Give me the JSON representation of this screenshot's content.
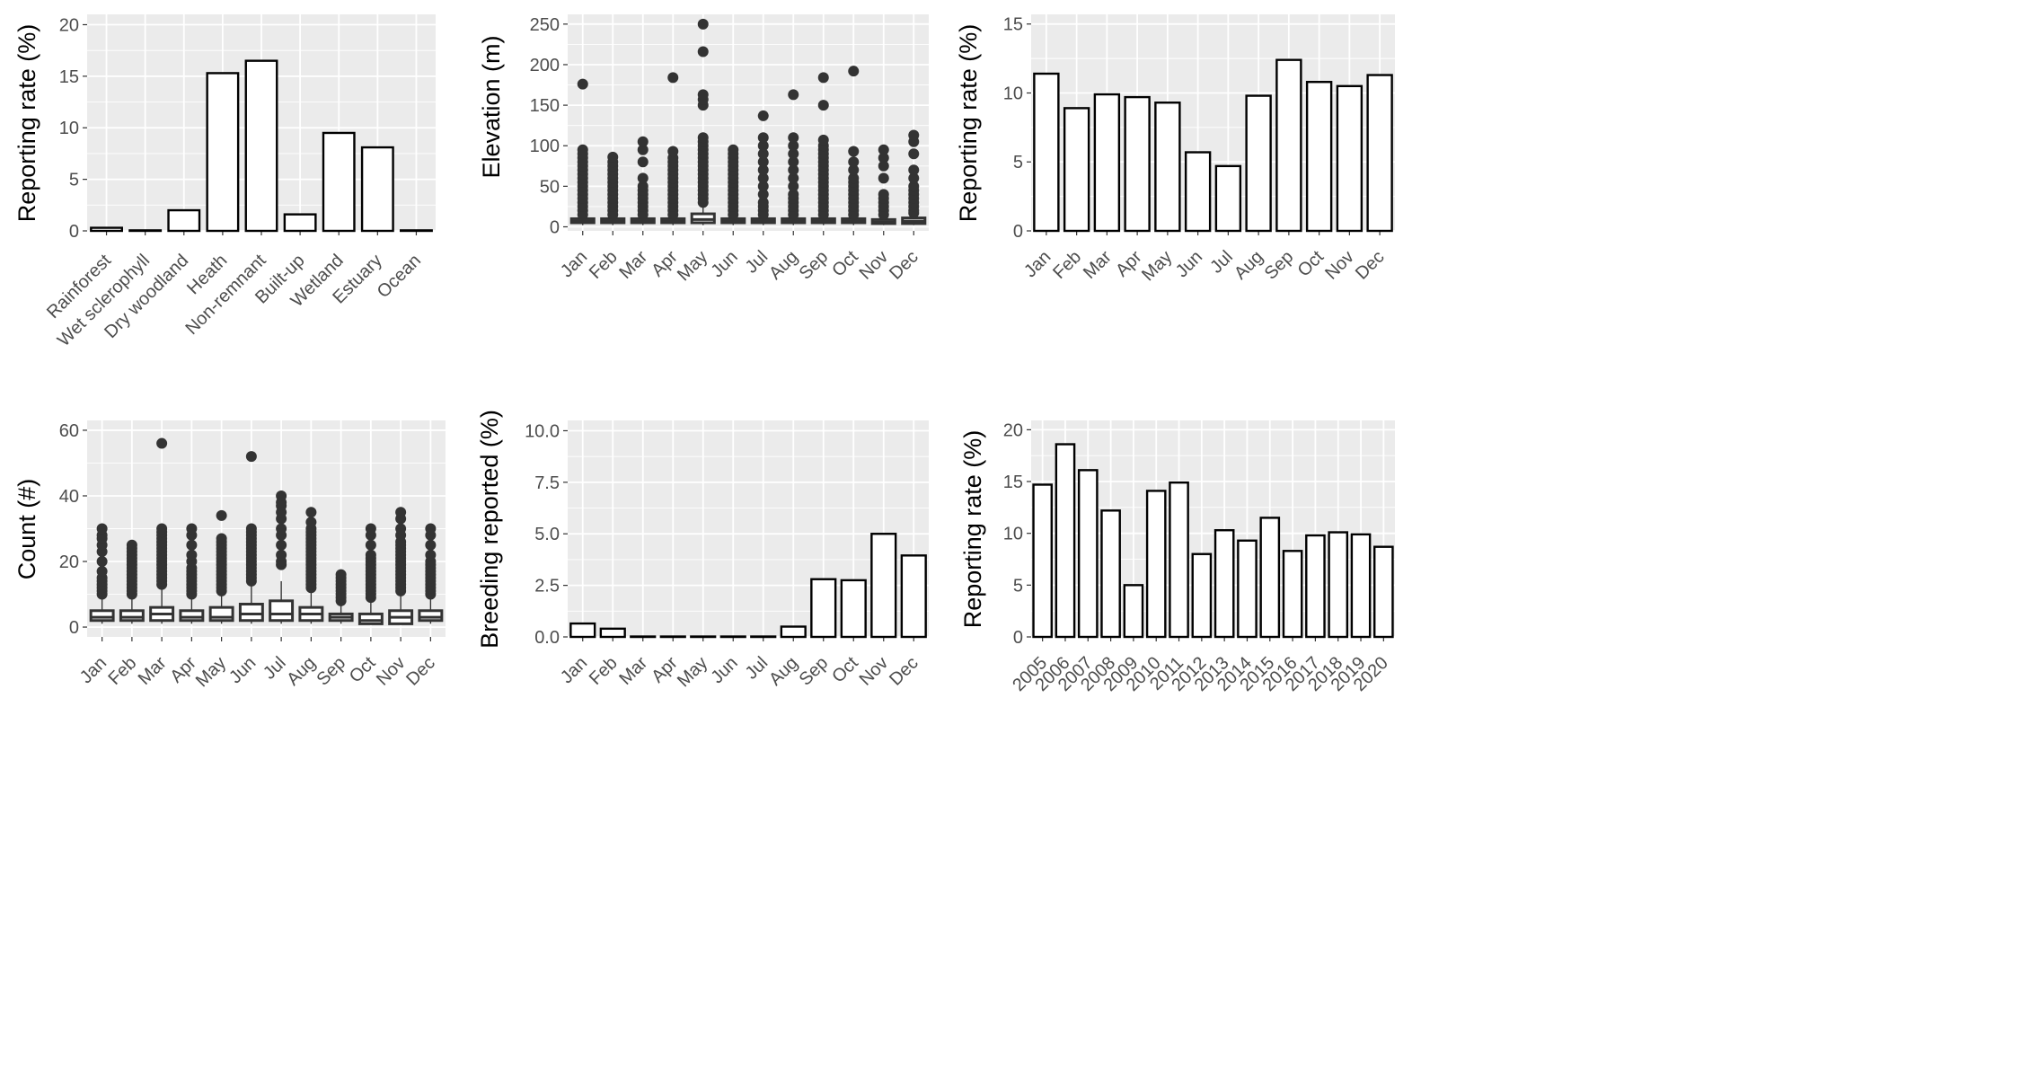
{
  "chart_data": [
    {
      "type": "bar",
      "ylabel": "Reporting rate (%)",
      "xlabel": "",
      "categories": [
        "Rainforest",
        "Wet sclerophyll",
        "Dry woodland",
        "Heath",
        "Non-remnant",
        "Built-up",
        "Wetland",
        "Estuary",
        "Ocean"
      ],
      "values": [
        0.3,
        0.05,
        2.0,
        15.3,
        16.5,
        1.6,
        9.5,
        8.1,
        0.05
      ],
      "ylim": [
        0,
        21
      ],
      "yticks": [
        "0",
        "5",
        "10",
        "15",
        "20"
      ],
      "grid": true,
      "colors": {
        "panel": "#ebebeb",
        "grid": "#ffffff",
        "bar_fill": "#ffffff",
        "bar_stroke": "#000000"
      }
    },
    {
      "type": "boxplot",
      "ylabel": "Elevation (m)",
      "xlabel": "",
      "categories": [
        "Jan",
        "Feb",
        "Mar",
        "Apr",
        "May",
        "Jun",
        "Jul",
        "Aug",
        "Sep",
        "Oct",
        "Nov",
        "Dec"
      ],
      "boxes": [
        {
          "q1": 5,
          "median": 7,
          "q3": 10,
          "whisker_low": 2,
          "whisker_high": 12,
          "outliers": [
            15,
            20,
            25,
            30,
            35,
            40,
            45,
            50,
            55,
            60,
            65,
            70,
            75,
            80,
            85,
            90,
            95,
            176
          ]
        },
        {
          "q1": 5,
          "median": 7,
          "q3": 10,
          "whisker_low": 2,
          "whisker_high": 12,
          "outliers": [
            15,
            20,
            25,
            30,
            35,
            40,
            45,
            50,
            55,
            60,
            65,
            70,
            75,
            80,
            86
          ]
        },
        {
          "q1": 5,
          "median": 7,
          "q3": 10,
          "whisker_low": 2,
          "whisker_high": 12,
          "outliers": [
            15,
            20,
            25,
            30,
            35,
            40,
            45,
            50,
            60,
            80,
            95,
            105
          ]
        },
        {
          "q1": 5,
          "median": 7,
          "q3": 10,
          "whisker_low": 2,
          "whisker_high": 12,
          "outliers": [
            15,
            20,
            25,
            30,
            35,
            40,
            45,
            50,
            55,
            60,
            65,
            70,
            75,
            80,
            85,
            93,
            184
          ]
        },
        {
          "q1": 5,
          "median": 9,
          "q3": 16,
          "whisker_low": 2,
          "whisker_high": 25,
          "outliers": [
            30,
            35,
            40,
            45,
            50,
            55,
            60,
            65,
            70,
            75,
            80,
            85,
            90,
            95,
            100,
            105,
            110,
            150,
            157,
            163,
            216,
            250
          ]
        },
        {
          "q1": 5,
          "median": 7,
          "q3": 10,
          "whisker_low": 2,
          "whisker_high": 12,
          "outliers": [
            15,
            20,
            25,
            30,
            35,
            40,
            45,
            50,
            55,
            60,
            65,
            70,
            75,
            80,
            85,
            90,
            95
          ]
        },
        {
          "q1": 5,
          "median": 7,
          "q3": 10,
          "whisker_low": 2,
          "whisker_high": 12,
          "outliers": [
            15,
            20,
            25,
            30,
            40,
            50,
            60,
            70,
            80,
            90,
            100,
            110,
            137
          ]
        },
        {
          "q1": 5,
          "median": 7,
          "q3": 10,
          "whisker_low": 2,
          "whisker_high": 12,
          "outliers": [
            15,
            20,
            25,
            30,
            35,
            40,
            50,
            60,
            70,
            80,
            90,
            100,
            110,
            163
          ]
        },
        {
          "q1": 5,
          "median": 7,
          "q3": 10,
          "whisker_low": 2,
          "whisker_high": 12,
          "outliers": [
            15,
            20,
            25,
            30,
            35,
            40,
            45,
            50,
            55,
            60,
            65,
            70,
            75,
            80,
            85,
            90,
            95,
            100,
            107,
            150,
            184
          ]
        },
        {
          "q1": 5,
          "median": 7,
          "q3": 10,
          "whisker_low": 2,
          "whisker_high": 12,
          "outliers": [
            15,
            20,
            25,
            30,
            35,
            40,
            45,
            50,
            55,
            60,
            70,
            80,
            93,
            192
          ]
        },
        {
          "q1": 4,
          "median": 6,
          "q3": 9,
          "whisker_low": 2,
          "whisker_high": 12,
          "outliers": [
            15,
            20,
            25,
            30,
            35,
            40,
            60,
            75,
            85,
            95
          ]
        },
        {
          "q1": 4,
          "median": 7,
          "q3": 11,
          "whisker_low": 2,
          "whisker_high": 14,
          "outliers": [
            17,
            20,
            25,
            30,
            35,
            40,
            45,
            50,
            60,
            70,
            90,
            105,
            113
          ]
        }
      ],
      "ylim": [
        -5,
        262
      ],
      "yticks": [
        "0",
        "50",
        "100",
        "150",
        "200",
        "250"
      ],
      "grid": true,
      "colors": {
        "panel": "#ebebeb",
        "grid": "#ffffff",
        "box_fill": "#ffffff",
        "box_stroke": "#333333",
        "point": "#333333"
      }
    },
    {
      "type": "bar",
      "ylabel": "Reporting rate (%)",
      "xlabel": "",
      "categories": [
        "Jan",
        "Feb",
        "Mar",
        "Apr",
        "May",
        "Jun",
        "Jul",
        "Aug",
        "Sep",
        "Oct",
        "Nov",
        "Dec"
      ],
      "values": [
        11.4,
        8.9,
        9.9,
        9.7,
        9.3,
        5.7,
        4.7,
        9.8,
        12.4,
        10.8,
        10.5,
        11.3
      ],
      "ylim": [
        0,
        15.7
      ],
      "yticks": [
        "0",
        "5",
        "10",
        "15"
      ],
      "grid": true,
      "colors": {
        "panel": "#ebebeb",
        "grid": "#ffffff",
        "bar_fill": "#ffffff",
        "bar_stroke": "#000000"
      }
    },
    {
      "type": "boxplot",
      "ylabel": "Count (#)",
      "xlabel": "",
      "categories": [
        "Jan",
        "Feb",
        "Mar",
        "Apr",
        "May",
        "Jun",
        "Jul",
        "Aug",
        "Sep",
        "Oct",
        "Nov",
        "Dec"
      ],
      "boxes": [
        {
          "q1": 2,
          "median": 3,
          "q3": 5,
          "whisker_low": 1,
          "whisker_high": 9,
          "outliers": [
            10,
            11,
            12,
            13,
            14,
            15,
            17,
            20,
            23,
            25,
            27,
            28,
            30
          ]
        },
        {
          "q1": 2,
          "median": 3,
          "q3": 5,
          "whisker_low": 1,
          "whisker_high": 9,
          "outliers": [
            10,
            11,
            12,
            13,
            14,
            15,
            16,
            17,
            18,
            19,
            20,
            21,
            22,
            23,
            24,
            25
          ]
        },
        {
          "q1": 2,
          "median": 4,
          "q3": 6,
          "whisker_low": 1,
          "whisker_high": 12,
          "outliers": [
            13,
            14,
            15,
            16,
            17,
            18,
            19,
            20,
            21,
            22,
            23,
            24,
            25,
            26,
            27,
            28,
            29,
            30,
            56
          ]
        },
        {
          "q1": 2,
          "median": 3,
          "q3": 5,
          "whisker_low": 1,
          "whisker_high": 9,
          "outliers": [
            10,
            11,
            12,
            13,
            14,
            15,
            16,
            17,
            18,
            20,
            22,
            25,
            28,
            30
          ]
        },
        {
          "q1": 2,
          "median": 3,
          "q3": 6,
          "whisker_low": 1,
          "whisker_high": 10,
          "outliers": [
            11,
            12,
            13,
            14,
            15,
            16,
            17,
            18,
            19,
            20,
            21,
            22,
            23,
            24,
            25,
            26,
            27,
            34
          ]
        },
        {
          "q1": 2,
          "median": 4,
          "q3": 7,
          "whisker_low": 1,
          "whisker_high": 13,
          "outliers": [
            14,
            15,
            16,
            17,
            18,
            19,
            20,
            21,
            22,
            23,
            24,
            25,
            26,
            27,
            28,
            29,
            30,
            52
          ]
        },
        {
          "q1": 2,
          "median": 4,
          "q3": 8,
          "whisker_low": 1,
          "whisker_high": 14,
          "outliers": [
            19,
            20,
            22,
            25,
            28,
            30,
            33,
            35,
            37,
            38,
            40
          ]
        },
        {
          "q1": 2,
          "median": 4,
          "q3": 6,
          "whisker_low": 1,
          "whisker_high": 11,
          "outliers": [
            12,
            13,
            14,
            15,
            16,
            17,
            18,
            19,
            20,
            21,
            22,
            23,
            24,
            25,
            26,
            27,
            28,
            29,
            30,
            32,
            35
          ]
        },
        {
          "q1": 2,
          "median": 3,
          "q3": 4,
          "whisker_low": 1,
          "whisker_high": 7,
          "outliers": [
            8,
            9,
            10,
            11,
            12,
            13,
            14,
            15,
            16
          ]
        },
        {
          "q1": 1,
          "median": 2,
          "q3": 4,
          "whisker_low": 1,
          "whisker_high": 8,
          "outliers": [
            9,
            10,
            11,
            12,
            13,
            14,
            15,
            16,
            17,
            18,
            19,
            20,
            21,
            22,
            25,
            28,
            30
          ]
        },
        {
          "q1": 1,
          "median": 3,
          "q3": 5,
          "whisker_low": 1,
          "whisker_high": 10,
          "outliers": [
            11,
            12,
            13,
            14,
            15,
            16,
            17,
            18,
            19,
            20,
            21,
            22,
            23,
            24,
            25,
            26,
            28,
            30,
            33,
            35
          ]
        },
        {
          "q1": 2,
          "median": 3,
          "q3": 5,
          "whisker_low": 1,
          "whisker_high": 9,
          "outliers": [
            10,
            11,
            12,
            13,
            14,
            15,
            16,
            17,
            18,
            19,
            20,
            22,
            25,
            28,
            30
          ]
        }
      ],
      "ylim": [
        -3,
        63
      ],
      "yticks": [
        "0",
        "20",
        "40",
        "60"
      ],
      "grid": true,
      "colors": {
        "panel": "#ebebeb",
        "grid": "#ffffff",
        "box_fill": "#ffffff",
        "box_stroke": "#333333",
        "point": "#333333"
      }
    },
    {
      "type": "bar",
      "ylabel": "Breeding reported (%)",
      "xlabel": "",
      "categories": [
        "Jan",
        "Feb",
        "Mar",
        "Apr",
        "May",
        "Jun",
        "Jul",
        "Aug",
        "Sep",
        "Oct",
        "Nov",
        "Dec"
      ],
      "values": [
        0.65,
        0.4,
        0.02,
        0.02,
        0.02,
        0.02,
        0.02,
        0.5,
        2.8,
        2.75,
        5.0,
        3.95
      ],
      "ylim": [
        0,
        10.5
      ],
      "yticks": [
        "0.0",
        "2.5",
        "5.0",
        "7.5",
        "10.0"
      ],
      "grid": true,
      "colors": {
        "panel": "#ebebeb",
        "grid": "#ffffff",
        "bar_fill": "#ffffff",
        "bar_stroke": "#000000"
      }
    },
    {
      "type": "bar",
      "ylabel": "Reporting rate (%)",
      "xlabel": "",
      "categories": [
        "2005",
        "2006",
        "2007",
        "2008",
        "2009",
        "2010",
        "2011",
        "2012",
        "2013",
        "2014",
        "2015",
        "2016",
        "2017",
        "2018",
        "2019",
        "2020"
      ],
      "values": [
        14.7,
        18.6,
        16.1,
        12.2,
        5.0,
        14.1,
        14.9,
        8.0,
        10.3,
        9.3,
        11.5,
        8.3,
        9.8,
        10.1,
        9.9,
        8.7
      ],
      "ylim": [
        0,
        20.9
      ],
      "yticks": [
        "0",
        "5",
        "10",
        "15",
        "20"
      ],
      "grid": true,
      "colors": {
        "panel": "#ebebeb",
        "grid": "#ffffff",
        "bar_fill": "#ffffff",
        "bar_stroke": "#000000"
      }
    }
  ]
}
